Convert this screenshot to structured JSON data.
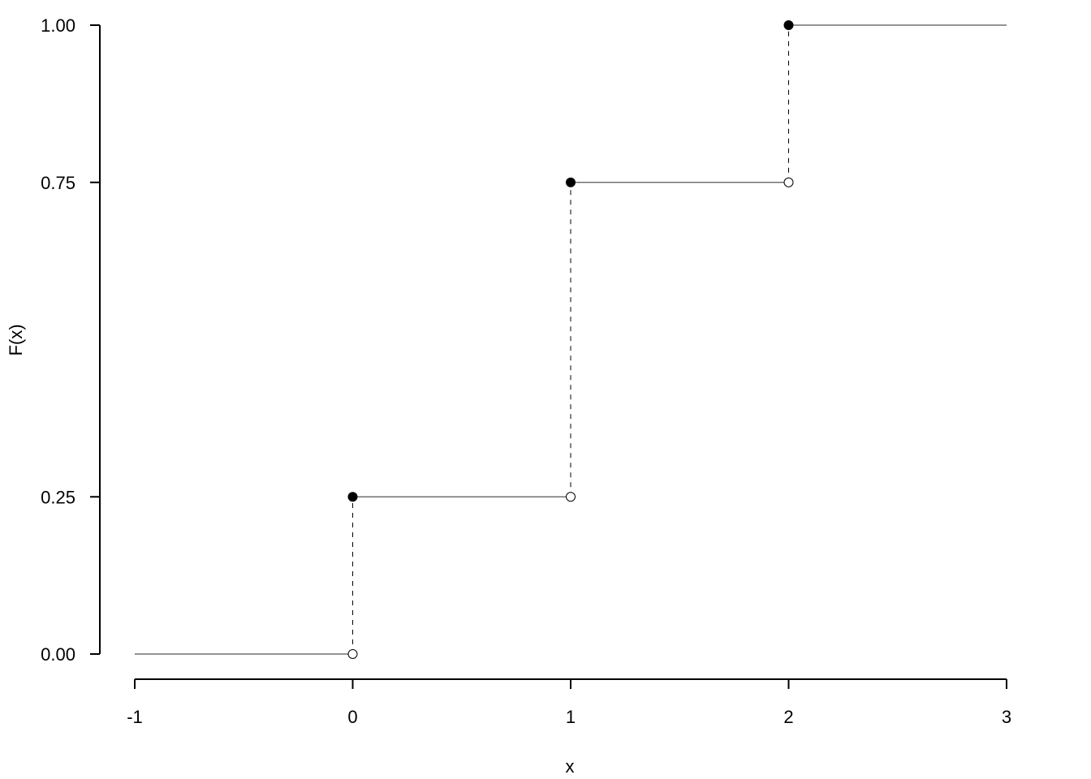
{
  "chart_data": {
    "type": "line",
    "subtype": "step-cdf",
    "title": "",
    "xlabel": "x",
    "ylabel": "F(x)",
    "xlim": [
      -1,
      3
    ],
    "ylim": [
      0,
      1
    ],
    "x_ticks": [
      "-1",
      "0",
      "1",
      "2",
      "3"
    ],
    "x_tick_values": [
      -1,
      0,
      1,
      2,
      3
    ],
    "y_ticks": [
      "0.00",
      "0.25",
      "0.75",
      "1.00"
    ],
    "y_tick_values": [
      0,
      0.25,
      0.75,
      1.0
    ],
    "grid": false,
    "steps": [
      {
        "x_start": -1,
        "x_end": 0,
        "y": 0
      },
      {
        "x_start": 0,
        "x_end": 1,
        "y": 0.25
      },
      {
        "x_start": 1,
        "x_end": 2,
        "y": 0.75
      },
      {
        "x_start": 2,
        "x_end": 3,
        "y": 1.0
      }
    ],
    "jumps": [
      {
        "x": 0,
        "from": 0,
        "to": 0.25
      },
      {
        "x": 1,
        "from": 0.25,
        "to": 0.75
      },
      {
        "x": 2,
        "from": 0.75,
        "to": 1.0
      }
    ],
    "colors": {
      "line": "#000000",
      "step_line": "#555555"
    }
  }
}
